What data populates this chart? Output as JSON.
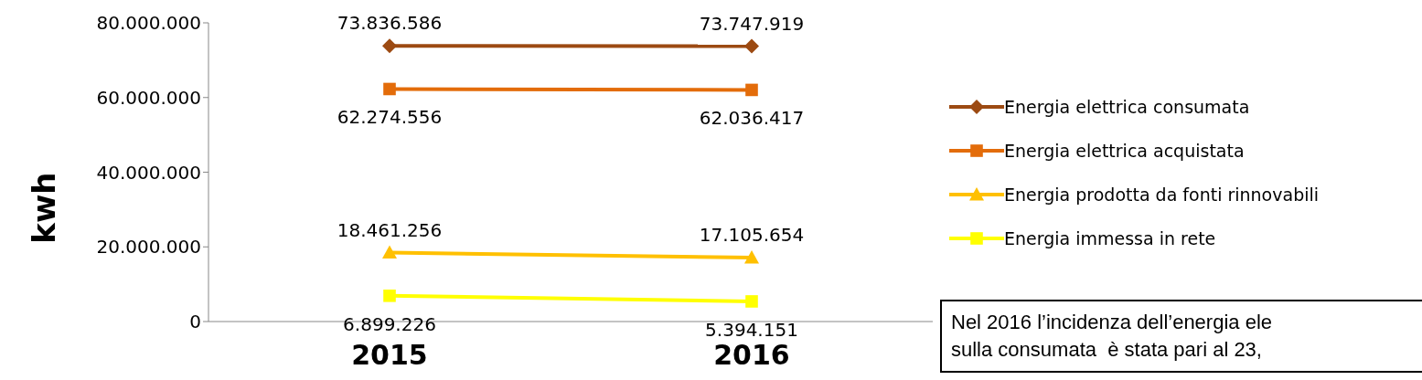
{
  "chart_data": {
    "type": "line",
    "ylabel": "kwh",
    "categories": [
      "2015",
      "2016"
    ],
    "ylim": [
      0,
      80000000
    ],
    "yticks": [
      {
        "value": 0,
        "label": "0"
      },
      {
        "value": 20000000,
        "label": "20.000.000"
      },
      {
        "value": 40000000,
        "label": "40.000.000"
      },
      {
        "value": 60000000,
        "label": "60.000.000"
      },
      {
        "value": 80000000,
        "label": "80.000.000"
      }
    ],
    "series": [
      {
        "name": "Energia elettrica consumata",
        "color": "#9c4a12",
        "marker": "diamond",
        "values": [
          73836586,
          73747919
        ],
        "value_labels": [
          "73.836.586",
          "73.747.919"
        ]
      },
      {
        "name": "Energia elettrica acquistata",
        "color": "#e36c0a",
        "marker": "square",
        "values": [
          62274556,
          62036417
        ],
        "value_labels": [
          "62.274.556",
          "62.036.417"
        ]
      },
      {
        "name": "Energia prodotta da fonti rinnovabili",
        "color": "#ffc000",
        "marker": "triangle",
        "values": [
          18461256,
          17105654
        ],
        "value_labels": [
          "18.461.256",
          "17.105.654"
        ]
      },
      {
        "name": "Energia immessa in rete",
        "color": "#ffff00",
        "marker": "square",
        "values": [
          6899226,
          5394151
        ],
        "value_labels": [
          "6.899.226",
          "5.394.151"
        ]
      }
    ],
    "legend": "right",
    "annotations": [
      "Nel 2016 l’incidenza dell’energia ele\nsulla consumata  è stata pari al 23,"
    ]
  }
}
